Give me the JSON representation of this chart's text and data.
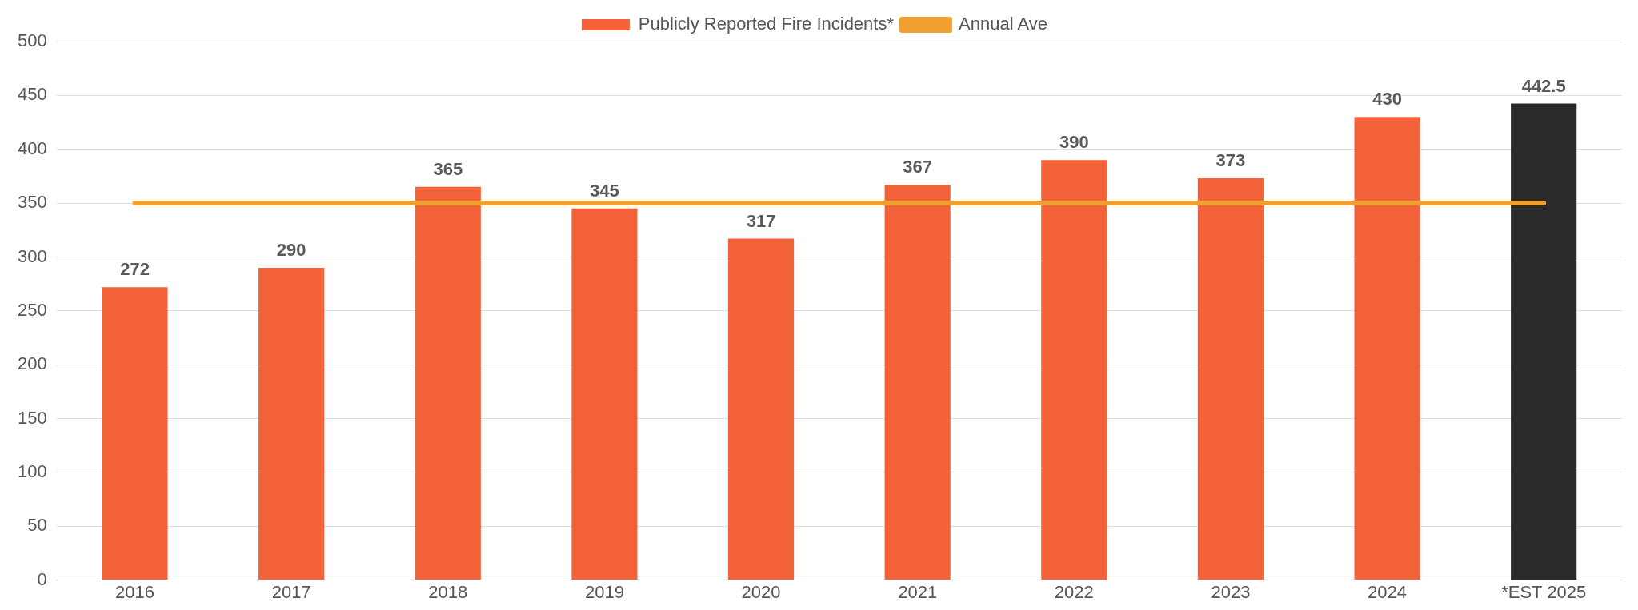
{
  "chart_data": {
    "type": "bar",
    "categories": [
      "2016",
      "2017",
      "2018",
      "2019",
      "2020",
      "2021",
      "2022",
      "2023",
      "2024",
      "*EST 2025"
    ],
    "series": [
      {
        "name": "Publicly Reported Fire Incidents*",
        "color": "#f4623a",
        "colors": [
          "#f4623a",
          "#f4623a",
          "#f4623a",
          "#f4623a",
          "#f4623a",
          "#f4623a",
          "#f4623a",
          "#f4623a",
          "#f4623a",
          "#2a2a2a"
        ],
        "values": [
          272,
          290,
          365,
          345,
          317,
          367,
          390,
          373,
          430,
          442.5
        ],
        "value_labels": [
          "272",
          "290",
          "365",
          "345",
          "317",
          "367",
          "390",
          "373",
          "430",
          "442.5"
        ]
      },
      {
        "name": "Annual Ave",
        "type": "line",
        "color": "#f0a030",
        "values": [
          350,
          350,
          350,
          350,
          350,
          350,
          350,
          350,
          350,
          350
        ]
      }
    ],
    "ylim": [
      0,
      500
    ],
    "yticks": [
      0,
      50,
      100,
      150,
      200,
      250,
      300,
      350,
      400,
      450,
      500
    ],
    "grid": "y",
    "legend": "top",
    "marker": "none"
  }
}
